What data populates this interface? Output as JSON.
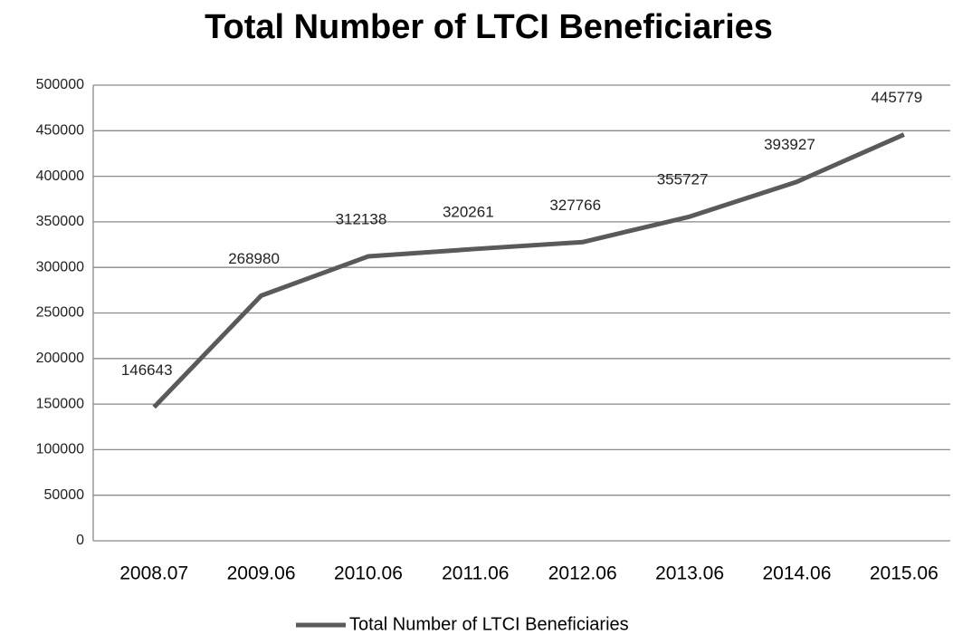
{
  "chart_data": {
    "type": "line",
    "title": "Total Number of LTCI Beneficiaries",
    "categories": [
      "2008.07",
      "2009.06",
      "2010.06",
      "2011.06",
      "2012.06",
      "2013.06",
      "2014.06",
      "2015.06"
    ],
    "series": [
      {
        "name": "Total Number of LTCI Beneficiaries",
        "color": "#5a5a5a",
        "values": [
          146643,
          268980,
          312138,
          320261,
          327766,
          355727,
          393927,
          445779
        ]
      }
    ],
    "ylim": [
      0,
      500000
    ],
    "yticks": [
      0,
      50000,
      100000,
      150000,
      200000,
      250000,
      300000,
      350000,
      400000,
      450000,
      500000
    ],
    "grid": true,
    "legend": "bottom"
  }
}
